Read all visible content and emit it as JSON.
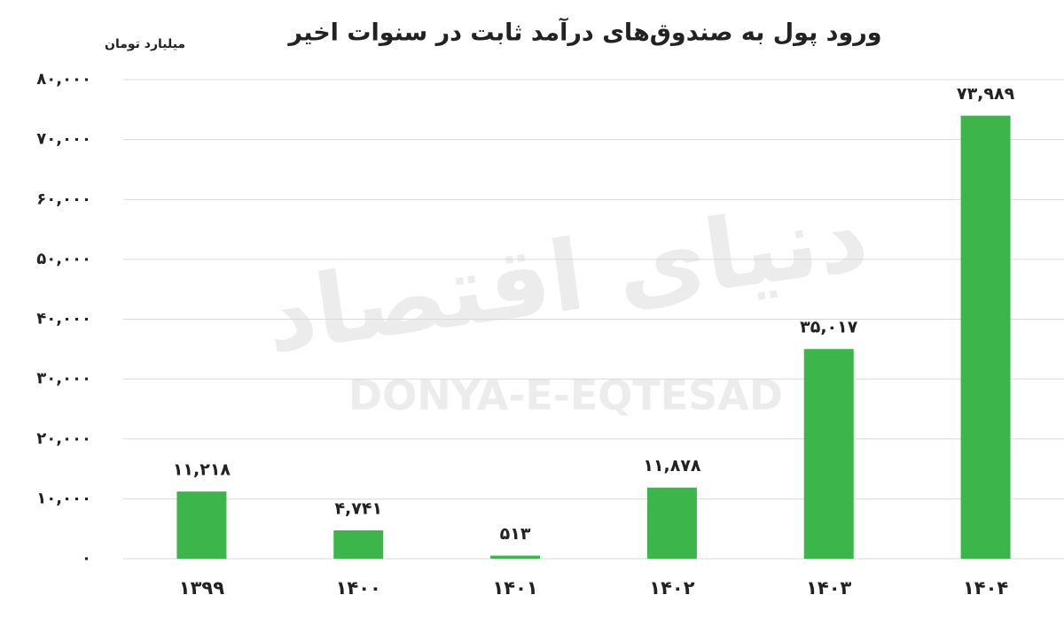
{
  "chart_data": {
    "type": "bar",
    "title": "ورود پول به صندوق‌های درآمد ثابت در سنوات اخیر",
    "y_label": "میلیارد تومان",
    "watermark": [
      "دنیای اقتصاد",
      "DONYA-E-EQTESAD"
    ],
    "categories": [
      "۱۳۹۹",
      "۱۴۰۰",
      "۱۴۰۱",
      "۱۴۰۲",
      "۱۴۰۳",
      "۱۴۰۴"
    ],
    "values": [
      11218,
      4741,
      513,
      11878,
      35017,
      73989
    ],
    "value_labels": [
      "۱۱,۲۱۸",
      "۴,۷۴۱",
      "۵۱۳",
      "۱۱,۸۷۸",
      "۳۵,۰۱۷",
      "۷۳,۹۸۹"
    ],
    "color": "#3cb54a",
    "ylim": [
      0,
      80000
    ],
    "yticks": [
      {
        "value": 0,
        "label": "۰"
      },
      {
        "value": 10000,
        "label": "۱۰,۰۰۰"
      },
      {
        "value": 20000,
        "label": "۲۰,۰۰۰"
      },
      {
        "value": 30000,
        "label": "۳۰,۰۰۰"
      },
      {
        "value": 40000,
        "label": "۴۰,۰۰۰"
      },
      {
        "value": 50000,
        "label": "۵۰,۰۰۰"
      },
      {
        "value": 60000,
        "label": "۶۰,۰۰۰"
      },
      {
        "value": 70000,
        "label": "۷۰,۰۰۰"
      },
      {
        "value": 80000,
        "label": "۸۰,۰۰۰"
      }
    ],
    "grid": true
  }
}
